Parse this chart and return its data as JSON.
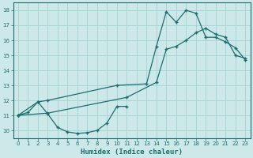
{
  "xlabel": "Humidex (Indice chaleur)",
  "bg_color": "#cce8e8",
  "grid_color": "#aad4d4",
  "line_color": "#1a6e6e",
  "xlim": [
    -0.5,
    23.5
  ],
  "ylim": [
    9.5,
    18.5
  ],
  "xticks": [
    0,
    1,
    2,
    3,
    4,
    5,
    6,
    7,
    8,
    9,
    10,
    11,
    12,
    13,
    14,
    15,
    16,
    17,
    18,
    19,
    20,
    21,
    22,
    23
  ],
  "yticks": [
    10,
    11,
    12,
    13,
    14,
    15,
    16,
    17,
    18
  ],
  "line_u_x": [
    0,
    1,
    2,
    3,
    4,
    5,
    6,
    7,
    8,
    9,
    10,
    11
  ],
  "line_u_y": [
    11.0,
    11.2,
    11.9,
    11.1,
    10.2,
    9.9,
    9.8,
    9.85,
    10.0,
    10.5,
    11.6,
    11.6
  ],
  "line_peak_x": [
    0,
    2,
    3,
    10,
    13,
    14,
    15,
    16,
    17,
    18,
    19,
    20,
    21,
    22,
    23
  ],
  "line_peak_y": [
    11.0,
    11.9,
    12.0,
    13.0,
    13.1,
    15.6,
    17.9,
    17.2,
    18.0,
    17.8,
    16.2,
    16.2,
    15.9,
    15.5,
    14.7
  ],
  "line_diag_x": [
    0,
    3,
    11,
    14,
    15,
    16,
    17,
    18,
    19,
    20,
    21,
    22,
    23
  ],
  "line_diag_y": [
    11.0,
    11.15,
    12.2,
    13.2,
    15.4,
    15.6,
    16.0,
    16.5,
    16.8,
    16.4,
    16.2,
    15.0,
    14.8
  ]
}
